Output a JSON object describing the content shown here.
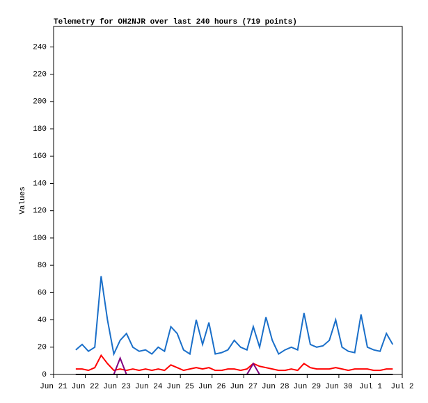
{
  "chart_data": {
    "type": "line",
    "title": "Telemetry for OH2NJR over last 240 hours (719 points)",
    "y_label": "Values",
    "x": [
      0.7,
      0.9,
      1.1,
      1.3,
      1.5,
      1.7,
      1.9,
      2.1,
      2.3,
      2.5,
      2.7,
      2.9,
      3.1,
      3.3,
      3.5,
      3.7,
      3.9,
      4.1,
      4.3,
      4.5,
      4.7,
      4.9,
      5.1,
      5.3,
      5.5,
      5.7,
      5.9,
      6.1,
      6.3,
      6.5,
      6.7,
      6.9,
      7.1,
      7.3,
      7.5,
      7.7,
      7.9,
      8.1,
      8.3,
      8.5,
      8.7,
      8.9,
      9.1,
      9.3,
      9.5,
      9.7,
      9.9,
      10.1,
      10.3,
      10.5,
      10.7
    ],
    "series": [
      {
        "color": "#1a6fc9",
        "values": [
          18,
          22,
          17,
          20,
          72,
          40,
          15,
          25,
          30,
          20,
          17,
          18,
          15,
          20,
          17,
          35,
          30,
          18,
          15,
          40,
          22,
          38,
          15,
          16,
          18,
          25,
          20,
          18,
          35,
          20,
          42,
          25,
          15,
          18,
          20,
          18,
          45,
          22,
          20,
          21,
          25,
          40,
          20,
          17,
          16,
          44,
          20,
          18,
          17,
          30,
          22
        ]
      },
      {
        "color": "#ff0000",
        "values": [
          4,
          4,
          3,
          5,
          14,
          8,
          3,
          4,
          3,
          4,
          3,
          4,
          3,
          4,
          3,
          7,
          5,
          3,
          4,
          5,
          4,
          5,
          3,
          3,
          4,
          4,
          3,
          4,
          8,
          6,
          5,
          4,
          3,
          3,
          4,
          3,
          8,
          5,
          4,
          4,
          4,
          5,
          4,
          3,
          4,
          4,
          4,
          3,
          3,
          4,
          4
        ]
      },
      {
        "color": "#800080",
        "values": [
          0,
          0,
          0,
          0,
          0,
          0,
          0,
          12,
          0,
          0,
          0,
          0,
          0,
          0,
          0,
          0,
          0,
          0,
          0,
          0,
          0,
          0,
          0,
          0,
          0,
          0,
          0,
          0,
          8,
          0,
          0,
          0,
          0,
          0,
          0,
          0,
          0,
          0,
          0,
          0,
          0,
          0,
          0,
          0,
          0,
          0,
          0,
          0,
          0,
          0,
          0
        ]
      },
      {
        "color": "#000000",
        "values": [
          0,
          0,
          0,
          0,
          0,
          0,
          0,
          0,
          0,
          0,
          0,
          0,
          0,
          0,
          0,
          0,
          0,
          0,
          0,
          0,
          0,
          0,
          0,
          0,
          0,
          0,
          0,
          0,
          0,
          0,
          0,
          0,
          0,
          0,
          0,
          0,
          0,
          0,
          0,
          0,
          0,
          0,
          0,
          0,
          0,
          0,
          0,
          0,
          0,
          0,
          0
        ]
      }
    ],
    "xlim": [
      0,
      11
    ],
    "xticks": [
      {
        "value": 0,
        "label": "Jun 21"
      },
      {
        "value": 1,
        "label": "Jun 22"
      },
      {
        "value": 2,
        "label": "Jun 23"
      },
      {
        "value": 3,
        "label": "Jun 24"
      },
      {
        "value": 4,
        "label": "Jun 25"
      },
      {
        "value": 5,
        "label": "Jun 26"
      },
      {
        "value": 6,
        "label": "Jun 27"
      },
      {
        "value": 7,
        "label": "Jun 28"
      },
      {
        "value": 8,
        "label": "Jun 29"
      },
      {
        "value": 9,
        "label": "Jun 30"
      },
      {
        "value": 10,
        "label": "Jul 1"
      },
      {
        "value": 11,
        "label": "Jul 2"
      }
    ],
    "ylim": [
      0,
      255
    ],
    "yticks": [
      0,
      20,
      40,
      60,
      80,
      100,
      120,
      140,
      160,
      180,
      200,
      220,
      240
    ]
  }
}
